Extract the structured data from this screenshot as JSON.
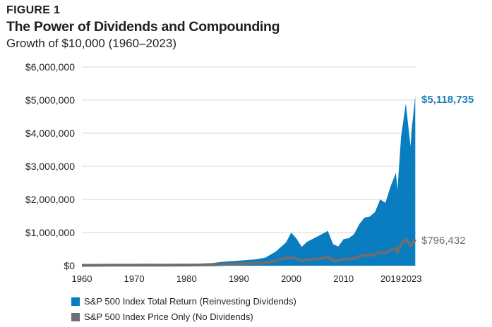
{
  "header": {
    "figure_label": "FIGURE 1",
    "title": "The Power of Dividends and Compounding",
    "subtitle": "Growth of $10,000 (1960–2023)"
  },
  "colors": {
    "total_return": "#0a7dc0",
    "price_only": "#6d6e71",
    "grid": "#d7d7d7",
    "end_label_total": "#1a7fb5",
    "end_label_price": "#6d6e71"
  },
  "chart_data": {
    "type": "area",
    "title": "The Power of Dividends and Compounding",
    "subtitle": "Growth of $10,000 (1960–2023)",
    "xlabel": "",
    "ylabel": "",
    "xlim": [
      1960,
      2023.8
    ],
    "ylim": [
      0,
      6000000
    ],
    "grid": true,
    "legend_position": "bottom-left",
    "y_ticks": [
      {
        "value": 0,
        "label": "$0"
      },
      {
        "value": 1000000,
        "label": "$1,000,000"
      },
      {
        "value": 2000000,
        "label": "$2,000,000"
      },
      {
        "value": 3000000,
        "label": "$3,000,000"
      },
      {
        "value": 4000000,
        "label": "$4,000,000"
      },
      {
        "value": 5000000,
        "label": "$5,000,000"
      },
      {
        "value": 6000000,
        "label": "$6,000,000"
      }
    ],
    "x_ticks": [
      {
        "value": 1960,
        "label": "1960"
      },
      {
        "value": 1970,
        "label": "1970"
      },
      {
        "value": 1980,
        "label": "1980"
      },
      {
        "value": 1990,
        "label": "1990"
      },
      {
        "value": 2000,
        "label": "2000"
      },
      {
        "value": 2010,
        "label": "2010"
      },
      {
        "value": 2019,
        "label": "2019"
      },
      {
        "value": 2023,
        "label": "2023"
      }
    ],
    "series": [
      {
        "name": "S&P 500 Index Total Return (Reinvesting Dividends)",
        "kind": "area",
        "end_label": "$5,118,735",
        "points": [
          [
            1960,
            10000
          ],
          [
            1965,
            18000
          ],
          [
            1970,
            22000
          ],
          [
            1973,
            30000
          ],
          [
            1975,
            26000
          ],
          [
            1980,
            45000
          ],
          [
            1985,
            80000
          ],
          [
            1987,
            120000
          ],
          [
            1990,
            150000
          ],
          [
            1993,
            190000
          ],
          [
            1995,
            240000
          ],
          [
            1997,
            420000
          ],
          [
            1999,
            700000
          ],
          [
            2000,
            1000000
          ],
          [
            2001,
            820000
          ],
          [
            2002,
            570000
          ],
          [
            2003,
            720000
          ],
          [
            2005,
            880000
          ],
          [
            2007,
            1050000
          ],
          [
            2008,
            650000
          ],
          [
            2009,
            580000
          ],
          [
            2010,
            800000
          ],
          [
            2011,
            830000
          ],
          [
            2012,
            950000
          ],
          [
            2013,
            1250000
          ],
          [
            2014,
            1450000
          ],
          [
            2015,
            1480000
          ],
          [
            2016,
            1620000
          ],
          [
            2017,
            2000000
          ],
          [
            2018,
            1900000
          ],
          [
            2019,
            2400000
          ],
          [
            2020,
            2800000
          ],
          [
            2020.3,
            2300000
          ],
          [
            2021,
            3900000
          ],
          [
            2021.9,
            4900000
          ],
          [
            2022.8,
            3600000
          ],
          [
            2023,
            4100000
          ],
          [
            2023.7,
            5118735
          ]
        ]
      },
      {
        "name": "S&P 500 Index Price Only (No Dividends)",
        "kind": "line",
        "end_label": "$796,432",
        "points": [
          [
            1960,
            10000
          ],
          [
            1965,
            14000
          ],
          [
            1970,
            15000
          ],
          [
            1973,
            19000
          ],
          [
            1975,
            14000
          ],
          [
            1980,
            19000
          ],
          [
            1985,
            28000
          ],
          [
            1987,
            38000
          ],
          [
            1990,
            55000
          ],
          [
            1993,
            70000
          ],
          [
            1995,
            85000
          ],
          [
            1997,
            150000
          ],
          [
            1999,
            230000
          ],
          [
            2000,
            250000
          ],
          [
            2001,
            210000
          ],
          [
            2002,
            150000
          ],
          [
            2003,
            180000
          ],
          [
            2005,
            200000
          ],
          [
            2007,
            260000
          ],
          [
            2008,
            150000
          ],
          [
            2009,
            150000
          ],
          [
            2010,
            200000
          ],
          [
            2011,
            200000
          ],
          [
            2012,
            220000
          ],
          [
            2013,
            280000
          ],
          [
            2014,
            320000
          ],
          [
            2015,
            310000
          ],
          [
            2016,
            340000
          ],
          [
            2017,
            410000
          ],
          [
            2018,
            380000
          ],
          [
            2019,
            470000
          ],
          [
            2020,
            520000
          ],
          [
            2020.3,
            400000
          ],
          [
            2021,
            650000
          ],
          [
            2021.9,
            790000
          ],
          [
            2022.8,
            600000
          ],
          [
            2023,
            640000
          ],
          [
            2023.7,
            796432
          ]
        ]
      }
    ]
  }
}
